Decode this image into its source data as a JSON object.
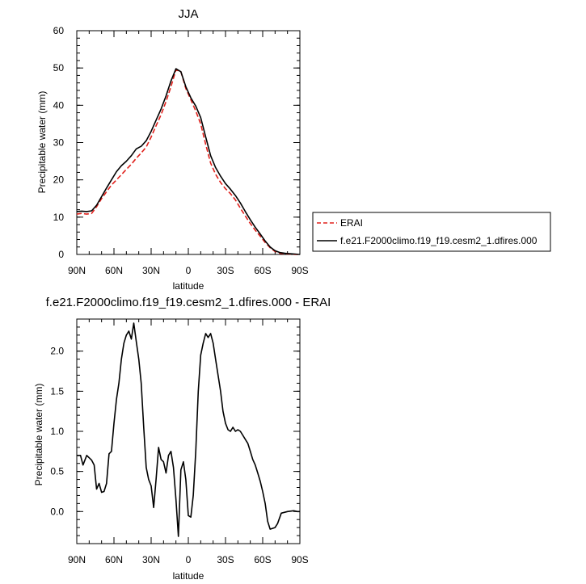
{
  "chart_data": [
    {
      "type": "line",
      "title": "JJA",
      "xlabel": "latitude",
      "ylabel": "Precipitable water (mm)",
      "xlim": [
        90,
        -90
      ],
      "ylim": [
        0,
        60
      ],
      "x_ticks": [
        90,
        60,
        30,
        0,
        -30,
        -60,
        -90
      ],
      "x_tick_labels": [
        "90N",
        "60N",
        "30N",
        "0",
        "30S",
        "60S",
        "90S"
      ],
      "y_ticks": [
        0,
        10,
        20,
        30,
        40,
        50,
        60
      ],
      "y_tick_labels": [
        "0",
        "10",
        "20",
        "30",
        "40",
        "50",
        "60"
      ],
      "legend": "outside-right",
      "series": [
        {
          "name": "ERAI",
          "color": "#e0201b",
          "dash": "dashed",
          "x": [
            90,
            86,
            82,
            78,
            74,
            70,
            66,
            62,
            58,
            54,
            50,
            46,
            42,
            38,
            34,
            30,
            26,
            22,
            18,
            14,
            10,
            6,
            2,
            -2,
            -6,
            -10,
            -14,
            -18,
            -22,
            -26,
            -30,
            -34,
            -38,
            -42,
            -46,
            -50,
            -54,
            -58,
            -62,
            -66,
            -70,
            -74,
            -78,
            -82,
            -86,
            -90
          ],
          "y": [
            10.8,
            11.0,
            10.8,
            11.0,
            12.8,
            15.0,
            16.8,
            18.6,
            20.0,
            21.4,
            22.8,
            24.2,
            25.8,
            27.2,
            28.8,
            31.5,
            34.5,
            37.5,
            41.0,
            45.0,
            49.5,
            49.0,
            44.5,
            41.5,
            38.5,
            35.0,
            29.5,
            24.5,
            21.5,
            19.3,
            17.6,
            16.3,
            14.6,
            12.4,
            10.3,
            8.3,
            6.5,
            4.9,
            3.2,
            1.8,
            0.8,
            0.3,
            0.2,
            0.1,
            0.0,
            0.0
          ]
        },
        {
          "name": "f.e21.F2000climo.f19_f19.cesm2_1.dfires.000",
          "color": "#000000",
          "dash": "solid",
          "x": [
            90,
            86,
            82,
            78,
            74,
            70,
            66,
            62,
            58,
            54,
            50,
            46,
            42,
            38,
            34,
            30,
            26,
            22,
            18,
            14,
            10,
            6,
            2,
            -2,
            -6,
            -10,
            -14,
            -18,
            -22,
            -26,
            -30,
            -34,
            -38,
            -42,
            -46,
            -50,
            -54,
            -58,
            -62,
            -66,
            -70,
            -74,
            -78,
            -82,
            -86,
            -90
          ],
          "y": [
            11.5,
            11.6,
            11.5,
            11.7,
            13.2,
            15.5,
            17.8,
            20.0,
            22.2,
            23.8,
            25.0,
            26.5,
            28.3,
            29.0,
            30.5,
            33.0,
            36.0,
            39.0,
            42.5,
            46.5,
            49.8,
            49.0,
            45.0,
            42.0,
            39.8,
            36.7,
            31.5,
            26.5,
            23.3,
            21.0,
            19.0,
            17.5,
            15.8,
            13.8,
            11.5,
            9.3,
            7.3,
            5.5,
            3.6,
            2.0,
            1.0,
            0.5,
            0.3,
            0.2,
            0.1,
            0.0
          ]
        }
      ]
    },
    {
      "type": "line",
      "title": "f.e21.F2000climo.f19_f19.cesm2_1.dfires.000 - ERAI",
      "xlabel": "latitude",
      "ylabel": "Precipitable water (mm)",
      "xlim": [
        90,
        -90
      ],
      "ylim": [
        -0.4,
        2.4
      ],
      "x_ticks": [
        90,
        60,
        30,
        0,
        -30,
        -60,
        -90
      ],
      "x_tick_labels": [
        "90N",
        "60N",
        "30N",
        "0",
        "30S",
        "60S",
        "90S"
      ],
      "y_ticks": [
        0,
        0.5,
        1,
        1.5,
        2
      ],
      "y_tick_labels": [
        "0.0",
        "0.5",
        "1.0",
        "1.5",
        "2.0"
      ],
      "series": [
        {
          "color": "#000000",
          "x": [
            90,
            87,
            85,
            82,
            78,
            76,
            74,
            72,
            70,
            68,
            66,
            64,
            62,
            60,
            58,
            56,
            54,
            52,
            50,
            48,
            46,
            44,
            42,
            40,
            38,
            36,
            34,
            32,
            30,
            28,
            26,
            24,
            22,
            20,
            18,
            16,
            14,
            12,
            10,
            8,
            6,
            4,
            2,
            0,
            -2,
            -4,
            -6,
            -8,
            -10,
            -12,
            -14,
            -16,
            -18,
            -20,
            -22,
            -24,
            -26,
            -28,
            -30,
            -32,
            -34,
            -36,
            -38,
            -40,
            -42,
            -44,
            -46,
            -48,
            -50,
            -52,
            -54,
            -56,
            -58,
            -60,
            -62,
            -64,
            -66,
            -68,
            -70,
            -72,
            -75,
            -80,
            -85,
            -88,
            -90
          ],
          "y": [
            0.7,
            0.7,
            0.58,
            0.7,
            0.64,
            0.58,
            0.28,
            0.35,
            0.24,
            0.25,
            0.35,
            0.72,
            0.75,
            1.1,
            1.4,
            1.6,
            1.9,
            2.1,
            2.2,
            2.25,
            2.15,
            2.35,
            2.12,
            1.9,
            1.6,
            1.05,
            0.55,
            0.4,
            0.32,
            0.05,
            0.4,
            0.8,
            0.65,
            0.62,
            0.48,
            0.7,
            0.75,
            0.55,
            0.15,
            -0.31,
            0.52,
            0.62,
            0.4,
            -0.05,
            -0.07,
            0.2,
            0.75,
            1.5,
            1.95,
            2.1,
            2.22,
            2.17,
            2.22,
            2.1,
            1.9,
            1.7,
            1.5,
            1.25,
            1.1,
            1.02,
            1.0,
            1.05,
            1.0,
            1.02,
            1.0,
            0.95,
            0.9,
            0.85,
            0.75,
            0.65,
            0.58,
            0.48,
            0.38,
            0.25,
            0.1,
            -0.12,
            -0.22,
            -0.21,
            -0.2,
            -0.15,
            -0.02,
            0.0,
            0.01,
            0.0,
            0.0
          ]
        }
      ]
    }
  ]
}
